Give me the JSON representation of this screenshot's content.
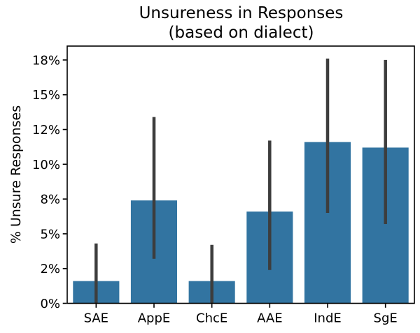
{
  "figure": {
    "background": "#ffffff",
    "text_color": "#000000",
    "spine_color": "#000000"
  },
  "chart_data": {
    "type": "bar",
    "title": "Unsureness in Responses\n(based on dialect)",
    "title_lines": [
      "Unsureness in Responses",
      "(based on dialect)"
    ],
    "xlabel": "",
    "ylabel": "% Unsure Responses",
    "categories": [
      "SAE",
      "AppE",
      "ChcE",
      "AAE",
      "IndE",
      "SgE"
    ],
    "values": [
      1.6,
      7.4,
      1.6,
      6.6,
      11.6,
      11.2
    ],
    "error_bars": [
      {
        "low": 0.0,
        "high": 4.3
      },
      {
        "low": 3.2,
        "high": 13.4
      },
      {
        "low": 0.0,
        "high": 4.2
      },
      {
        "low": 2.4,
        "high": 11.7
      },
      {
        "low": 6.5,
        "high": 17.6
      },
      {
        "low": 5.7,
        "high": 17.5
      }
    ],
    "yticks": {
      "values": [
        0,
        2.5,
        5,
        7.5,
        10,
        12.5,
        15,
        17.5
      ],
      "labels": [
        "0%",
        "2%",
        "5%",
        "8%",
        "10%",
        "12%",
        "15%",
        "18%"
      ]
    },
    "ylim": [
      0,
      18.5
    ],
    "grid": false,
    "legend": "none",
    "bar_color": "#3274a1",
    "error_bar_color": "#3d3d3d"
  }
}
